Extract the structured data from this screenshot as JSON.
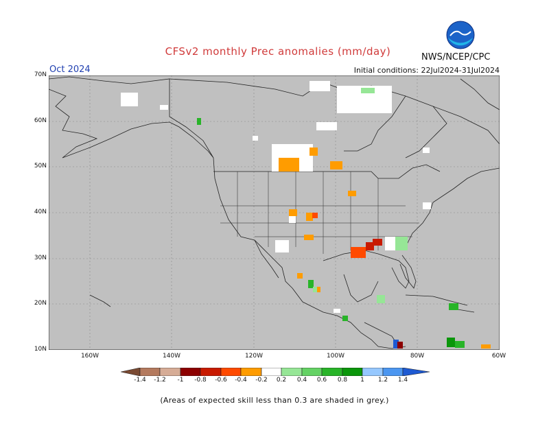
{
  "header": {
    "title": "CFSv2 monthly Prec anomalies (mm/day)",
    "month": "Oct 2024",
    "initial_conditions": "Initial conditions: 22Jul2024-31Jul2024",
    "agency": "NWS/NCEP/CPC",
    "logo_text": "NOAA"
  },
  "map": {
    "region": "North America",
    "lat_range": [
      10,
      70
    ],
    "lon_range": [
      -170,
      -60
    ],
    "background_color": "#c0c0c0",
    "y_ticks": [
      "70N",
      "60N",
      "50N",
      "40N",
      "30N",
      "20N",
      "10N"
    ],
    "x_ticks": [
      "160W",
      "140W",
      "120W",
      "100W",
      "80W",
      "60W"
    ]
  },
  "colorbar": {
    "labels": [
      "-1.4",
      "-1.2",
      "-1",
      "-0.8",
      "-0.6",
      "-0.4",
      "-0.2",
      "0.2",
      "0.4",
      "0.6",
      "0.8",
      "1",
      "1.2",
      "1.4"
    ],
    "colors": [
      "#7a4a32",
      "#b47a5e",
      "#d6ac96",
      "#8c0000",
      "#c81a00",
      "#ff4a00",
      "#ff9c00",
      "#ffffff",
      "#96e696",
      "#64d264",
      "#28b428",
      "#0a960a",
      "#96c8ff",
      "#4b96f0",
      "#1e5ad2"
    ],
    "unit": "mm/day"
  },
  "footnote": "(Areas of expected skill less than 0.3 are shaded in grey.)"
}
